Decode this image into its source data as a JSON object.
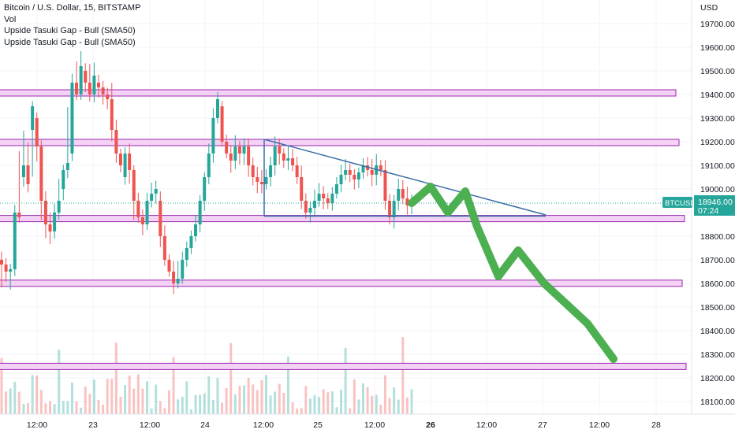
{
  "header": {
    "symbol_line": "Bitcoin / U.S. Dollar, 15, BITSTAMP",
    "indicators": [
      "Vol",
      "Upside Tasuki Gap - Bull (SMA50)",
      "Upside Tasuki Gap - Bull (SMA50)"
    ]
  },
  "price_axis": {
    "currency": "USD",
    "ticks": [
      "19700.00",
      "19600.00",
      "19500.00",
      "19400.00",
      "19300.00",
      "19200.00",
      "19100.00",
      "19000.00",
      "18900.00",
      "18800.00",
      "18700.00",
      "18600.00",
      "18500.00",
      "18400.00",
      "18300.00",
      "18200.00",
      "18100.00"
    ]
  },
  "last_price": {
    "symbol": "BTCUSD",
    "price": "18946.00",
    "countdown": "07:24",
    "color": "#26a69a"
  },
  "time_axis": {
    "labels": [
      "12:00",
      "23",
      "12:00",
      "24",
      "12:00",
      "25",
      "12:00",
      "26",
      "12:00",
      "27",
      "12:00",
      "28"
    ],
    "bold": [
      "26"
    ]
  },
  "colors": {
    "up": "#26a69a",
    "down": "#ef5350",
    "zone_fill": "#f3d2f5",
    "zone_stroke": "#9c27b0",
    "triangle": "#3b6ea8",
    "projection": "#4caf50"
  },
  "chart_data": {
    "type": "candlestick",
    "title": "Bitcoin / U.S. Dollar, 15, BITSTAMP",
    "y_unit": "USD",
    "ylim": [
      18050,
      19780
    ],
    "last_close": 18946,
    "x_labels": [
      "12:00",
      "23",
      "12:00",
      "24",
      "12:00",
      "25",
      "12:00",
      "26",
      "12:00",
      "27",
      "12:00",
      "28"
    ],
    "candles": [
      [
        18700,
        18680,
        18620
      ],
      [
        18680,
        18650,
        18640
      ],
      [
        18650,
        18660,
        18620
      ],
      [
        18660,
        18900,
        18820
      ],
      [
        18900,
        18880,
        19120
      ],
      [
        19050,
        19100,
        19220
      ],
      [
        19100,
        19020,
        19160
      ],
      [
        19250,
        19350,
        19100
      ],
      [
        19300,
        19180,
        19150
      ],
      [
        19180,
        18950,
        18900
      ],
      [
        18950,
        18850,
        18820
      ],
      [
        18850,
        18820,
        18800
      ],
      [
        18820,
        18900,
        18900
      ],
      [
        18900,
        18950,
        19000
      ],
      [
        19000,
        19080,
        19050
      ],
      [
        19080,
        19110,
        19300
      ],
      [
        19150,
        19450,
        19420
      ],
      [
        19450,
        19400,
        19500
      ],
      [
        19400,
        19520,
        19550
      ],
      [
        19500,
        19450,
        19480
      ],
      [
        19450,
        19400,
        19480
      ],
      [
        19400,
        19480,
        19500
      ],
      [
        19450,
        19430,
        19420
      ],
      [
        19430,
        19400,
        19400
      ],
      [
        19400,
        19380,
        19380
      ],
      [
        19380,
        19250,
        19400
      ],
      [
        19250,
        19150,
        19250
      ],
      [
        19150,
        19100,
        19100
      ],
      [
        19050,
        19150,
        19150
      ],
      [
        19150,
        19080,
        19050
      ],
      [
        19080,
        18950,
        18900
      ],
      [
        18950,
        18880,
        18900
      ],
      [
        18880,
        18850,
        18850
      ],
      [
        18850,
        18950,
        18950
      ],
      [
        18950,
        18980,
        18980
      ],
      [
        18980,
        19000,
        19010
      ],
      [
        18950,
        18800,
        18800
      ],
      [
        18800,
        18700,
        18750
      ],
      [
        18700,
        18650,
        18650
      ],
      [
        18650,
        18600,
        18650
      ],
      [
        18600,
        18620,
        18660
      ],
      [
        18620,
        18700,
        18700
      ],
      [
        18700,
        18750,
        18750
      ],
      [
        18750,
        18800,
        18800
      ],
      [
        18800,
        18850,
        18850
      ],
      [
        18850,
        18950,
        18950
      ],
      [
        18950,
        19050,
        19050
      ],
      [
        19050,
        19150,
        19150
      ],
      [
        19150,
        19300,
        19300
      ],
      [
        19300,
        19380,
        19380
      ],
      [
        19350,
        19200,
        19200
      ],
      [
        19200,
        19150,
        19150
      ],
      [
        19150,
        19120,
        19100
      ],
      [
        19120,
        19180,
        19180
      ],
      [
        19180,
        19150,
        19150
      ],
      [
        19150,
        19180,
        19180
      ],
      [
        19180,
        19100,
        19100
      ],
      [
        19100,
        19050,
        19050
      ],
      [
        19050,
        19030,
        19030
      ],
      [
        19030,
        19020,
        19020
      ],
      [
        19020,
        19050,
        19050
      ],
      [
        19050,
        19100,
        19100
      ],
      [
        19100,
        19180,
        19180
      ],
      [
        19180,
        19150,
        19150
      ],
      [
        19150,
        19120,
        19120
      ],
      [
        19120,
        19130,
        19130
      ],
      [
        19130,
        19100,
        19100
      ],
      [
        19100,
        19050,
        19050
      ],
      [
        19050,
        18950,
        18950
      ],
      [
        18950,
        18900,
        18900
      ],
      [
        18900,
        18920,
        18920
      ],
      [
        18920,
        18950,
        18950
      ],
      [
        18950,
        18980,
        18980
      ],
      [
        18980,
        18960,
        18960
      ],
      [
        18960,
        18940,
        18940
      ],
      [
        18940,
        18980,
        18980
      ],
      [
        18980,
        19020,
        19020
      ],
      [
        19020,
        19060,
        19060
      ],
      [
        19060,
        19080,
        19080
      ],
      [
        19080,
        19060,
        19060
      ],
      [
        19060,
        19040,
        19040
      ],
      [
        19040,
        19070,
        19070
      ],
      [
        19070,
        19100,
        19100
      ],
      [
        19100,
        19080,
        19080
      ],
      [
        19080,
        19060,
        19060
      ],
      [
        19060,
        19100,
        19100
      ],
      [
        19100,
        19080,
        19080
      ],
      [
        19080,
        18950,
        18950
      ],
      [
        18950,
        18880,
        18880
      ],
      [
        18880,
        18950,
        18950
      ],
      [
        18950,
        19000,
        19000
      ],
      [
        19000,
        18960,
        18960
      ],
      [
        18960,
        18930,
        18930
      ],
      [
        18930,
        18946,
        18946
      ]
    ],
    "zones": [
      {
        "low": 19405,
        "high": 19420
      },
      {
        "low": 19195,
        "high": 19210
      },
      {
        "low": 18875,
        "high": 18888
      },
      {
        "low": 18598,
        "high": 18614
      },
      {
        "low": 18248,
        "high": 18262
      }
    ],
    "triangle": {
      "top_start": 19210,
      "apex": 18890,
      "base": 18885
    },
    "projection_path": [
      18940,
      19010,
      18900,
      18990,
      18840,
      18630,
      18740,
      18600,
      18430,
      18280
    ],
    "volume_max": 100
  }
}
